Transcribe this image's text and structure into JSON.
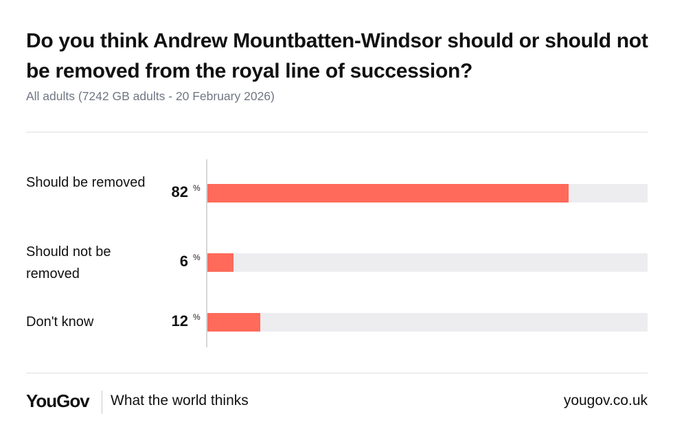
{
  "chart_data": {
    "type": "bar",
    "orientation": "horizontal",
    "title": "Do you think Andrew Mountbatten-Windsor should or should not be removed from the royal line of succession?",
    "subtitle": "All adults (7242 GB adults - 20 February 2026)",
    "categories": [
      "Should be removed",
      "Should not be removed",
      "Don't know"
    ],
    "values": [
      82,
      6,
      12
    ],
    "unit": "%",
    "xlim": [
      0,
      100
    ],
    "grid": false,
    "colors": {
      "bar": "#ff6a5a",
      "track": "#ededf0"
    }
  },
  "footer": {
    "logo": "YouGov",
    "tagline": "What the world thinks",
    "site": "yougov.co.uk"
  }
}
